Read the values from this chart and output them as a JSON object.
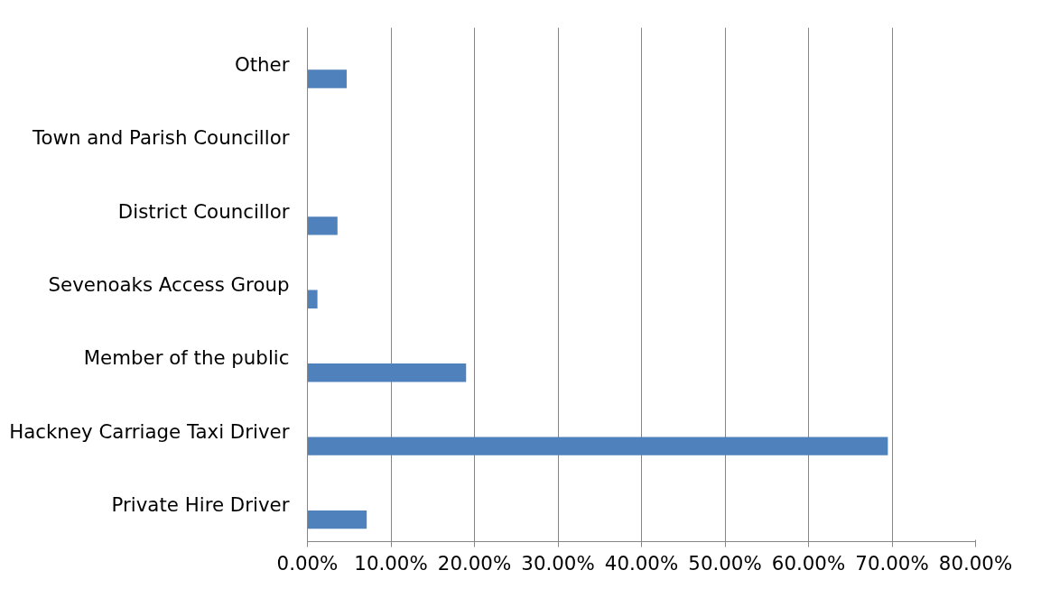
{
  "chart_data": {
    "type": "bar",
    "orientation": "horizontal",
    "categories": [
      "Other",
      "Town and Parish Councillor",
      "District Councillor",
      "Sevenoaks Access Group",
      "Member of the public",
      "Hackney Carriage Taxi Driver",
      "Private Hire Driver"
    ],
    "values": [
      4.7,
      0,
      3.6,
      1.2,
      19.0,
      69.5,
      7.1
    ],
    "color": "#4f81bd",
    "xlim": [
      0,
      80
    ],
    "xticks": [
      {
        "value": 0,
        "label": "0.00%"
      },
      {
        "value": 10,
        "label": "10.00%"
      },
      {
        "value": 20,
        "label": "20.00%"
      },
      {
        "value": 30,
        "label": "30.00%"
      },
      {
        "value": 40,
        "label": "40.00%"
      },
      {
        "value": 50,
        "label": "50.00%"
      },
      {
        "value": 60,
        "label": "60.00%"
      },
      {
        "value": 70,
        "label": "70.00%"
      },
      {
        "value": 80,
        "label": "80.00%"
      }
    ],
    "grid": "x"
  }
}
